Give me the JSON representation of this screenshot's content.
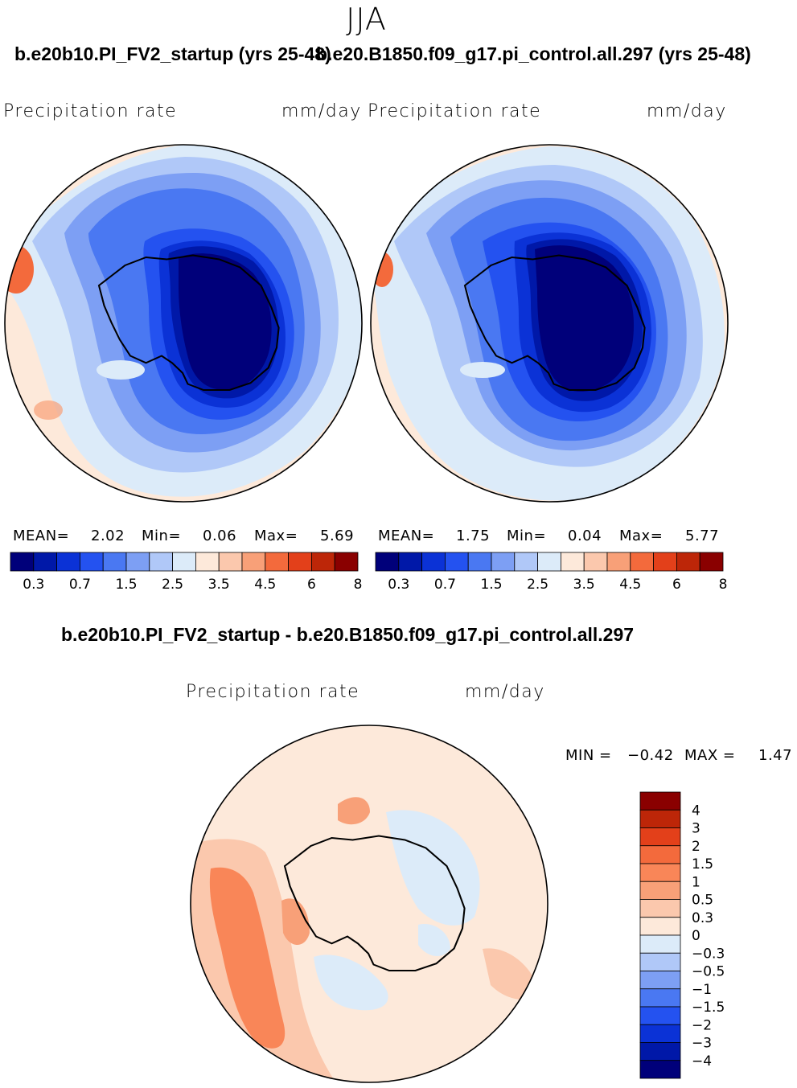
{
  "season": "JJA",
  "panels": [
    {
      "run_title": "b.e20b10.PI_FV2_startup (yrs 25-48)",
      "field": "Precipitation  rate",
      "units": "mm/day",
      "mean_label": "MEAN=",
      "mean": "2.02",
      "min_label": "Min=",
      "min": "0.06",
      "max_label": "Max=",
      "max": "5.69"
    },
    {
      "run_title": "b.e20.B1850.f09_g17.pi_control.all.297 (yrs 25-48)",
      "field": "Precipitation  rate",
      "units": "mm/day",
      "mean_label": "MEAN=",
      "mean": "1.75",
      "min_label": "Min=",
      "min": "0.04",
      "max_label": "Max=",
      "max": "5.77"
    }
  ],
  "difference": {
    "title": "b.e20b10.PI_FV2_startup - b.e20.B1850.f09_g17.pi_control.all.297",
    "field": "Precipitation  rate",
    "units": "mm/day",
    "min_label": "MIN =",
    "min": "−0.42",
    "max_label": "MAX =",
    "max": "1.47"
  },
  "chart_data": [
    {
      "type": "heatmap",
      "projection": "south-polar-stereographic",
      "title": "b.e20b10.PI_FV2_startup (yrs 25-48)",
      "variable": "Precipitation rate",
      "units": "mm/day",
      "stats": {
        "mean": 2.02,
        "min": 0.06,
        "max": 5.69
      },
      "colorbar": {
        "colors": [
          "#00007a",
          "#0018a8",
          "#0b32d6",
          "#2452f0",
          "#4a78f2",
          "#7d9ff4",
          "#b0c8f8",
          "#dcebf9",
          "#fde9da",
          "#fbc8ad",
          "#f8a078",
          "#f36a3c",
          "#e3401a",
          "#bd2608",
          "#8a0000"
        ],
        "tick_labels": [
          "0.3",
          "0.7",
          "1.5",
          "2.5",
          "3.5",
          "4.5",
          "6",
          "8"
        ]
      }
    },
    {
      "type": "heatmap",
      "projection": "south-polar-stereographic",
      "title": "b.e20.B1850.f09_g17.pi_control.all.297 (yrs 25-48)",
      "variable": "Precipitation rate",
      "units": "mm/day",
      "stats": {
        "mean": 1.75,
        "min": 0.04,
        "max": 5.77
      },
      "colorbar": {
        "colors": [
          "#00007a",
          "#0018a8",
          "#0b32d6",
          "#2452f0",
          "#4a78f2",
          "#7d9ff4",
          "#b0c8f8",
          "#dcebf9",
          "#fde9da",
          "#fbc8ad",
          "#f8a078",
          "#f36a3c",
          "#e3401a",
          "#bd2608",
          "#8a0000"
        ],
        "tick_labels": [
          "0.3",
          "0.7",
          "1.5",
          "2.5",
          "3.5",
          "4.5",
          "6",
          "8"
        ]
      }
    },
    {
      "type": "heatmap",
      "projection": "south-polar-stereographic",
      "title": "b.e20b10.PI_FV2_startup - b.e20.B1850.f09_g17.pi_control.all.297",
      "variable": "Precipitation rate",
      "units": "mm/day",
      "stats": {
        "min": -0.42,
        "max": 1.47
      },
      "colorbar": {
        "colors": [
          "#8a0000",
          "#bd2608",
          "#e3401a",
          "#f36a3c",
          "#f98658",
          "#f8a078",
          "#fbc8ad",
          "#fde9da",
          "#dcebf9",
          "#b0c8f8",
          "#7d9ff4",
          "#4a78f2",
          "#2452f0",
          "#0b32d6",
          "#0018a8",
          "#00007a"
        ],
        "tick_labels": [
          "4",
          "3",
          "2",
          "1.5",
          "1",
          "0.5",
          "0.3",
          "0",
          "−0.3",
          "−0.5",
          "−1",
          "−1.5",
          "−2",
          "−3",
          "−4"
        ]
      }
    }
  ]
}
